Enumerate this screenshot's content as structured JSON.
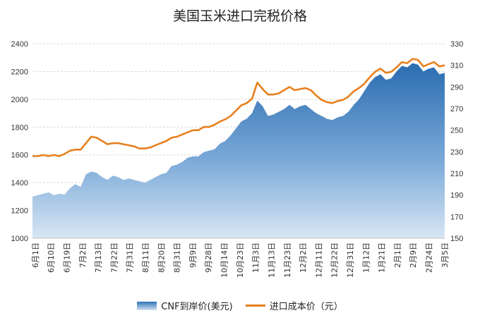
{
  "chart_data": {
    "type": "area+line",
    "title": "美国玉米进口完税价格",
    "legend_position": "bottom",
    "grid": true,
    "y_left": {
      "lim": [
        1000,
        2400
      ],
      "ticks": [
        1000,
        1200,
        1400,
        1600,
        1800,
        2000,
        2200,
        2400
      ]
    },
    "y_right": {
      "lim": [
        150,
        330
      ],
      "ticks": [
        150,
        170,
        190,
        210,
        230,
        250,
        270,
        290,
        310,
        330
      ]
    },
    "x_tick_labels": [
      "6月1日",
      "6月10日",
      "6月19日",
      "7月2日",
      "7月13日",
      "7月22日",
      "7月31日",
      "8月11日",
      "8月20日",
      "8月31日",
      "9月9日",
      "9月28日",
      "10月14日",
      "10月23日",
      "11月3日",
      "11月13日",
      "11月23日",
      "12月2日",
      "12月11日",
      "12月22日",
      "12月31日",
      "1月12日",
      "1月21日",
      "2月1日",
      "2月9日",
      "2月24日",
      "3月5日"
    ],
    "series": [
      {
        "name": "CNF到岸价(美元)",
        "kind": "area",
        "axis": "left",
        "color": "#2f73b5",
        "values": [
          1300,
          1310,
          1320,
          1330,
          1310,
          1320,
          1315,
          1360,
          1390,
          1370,
          1460,
          1480,
          1470,
          1440,
          1420,
          1450,
          1440,
          1420,
          1430,
          1420,
          1410,
          1400,
          1420,
          1440,
          1460,
          1470,
          1520,
          1530,
          1550,
          1580,
          1590,
          1590,
          1620,
          1630,
          1640,
          1680,
          1700,
          1740,
          1790,
          1840,
          1860,
          1900,
          1990,
          1950,
          1880,
          1890,
          1910,
          1930,
          1960,
          1930,
          1950,
          1960,
          1930,
          1900,
          1880,
          1860,
          1850,
          1870,
          1880,
          1910,
          1960,
          2000,
          2060,
          2120,
          2160,
          2180,
          2140,
          2150,
          2200,
          2240,
          2230,
          2260,
          2250,
          2200,
          2220,
          2230,
          2180,
          2190
        ]
      },
      {
        "name": "进口成本价（元）",
        "kind": "line",
        "axis": "right",
        "color": "#e8801f",
        "values": [
          226,
          226,
          227,
          226,
          227,
          226,
          228,
          231,
          232,
          232,
          238,
          244,
          243,
          240,
          237,
          238,
          238,
          237,
          236,
          235,
          233,
          233,
          234,
          236,
          238,
          240,
          243,
          244,
          246,
          248,
          250,
          250,
          253,
          253,
          255,
          258,
          260,
          263,
          268,
          273,
          275,
          279,
          294,
          288,
          283,
          283,
          284,
          287,
          290,
          287,
          288,
          289,
          287,
          282,
          278,
          276,
          275,
          277,
          278,
          281,
          286,
          289,
          293,
          299,
          304,
          307,
          303,
          304,
          308,
          313,
          312,
          316,
          315,
          309,
          311,
          313,
          309,
          310
        ]
      }
    ]
  }
}
